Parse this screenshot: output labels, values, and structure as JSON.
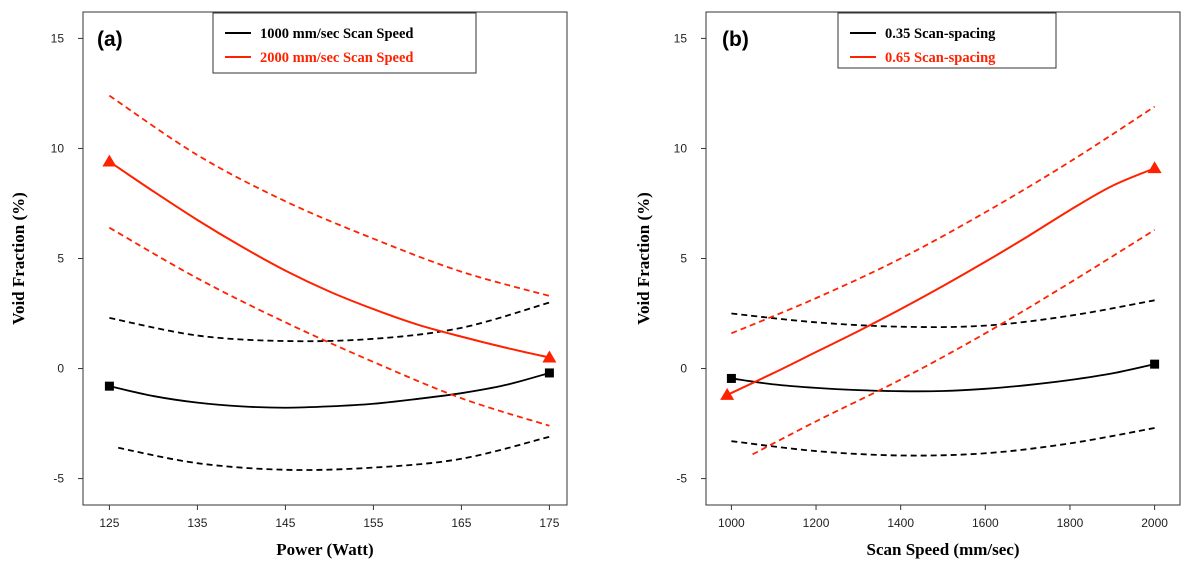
{
  "chart_data": [
    {
      "type": "line",
      "panel_label": "(a)",
      "xlabel": "Power (Watt)",
      "ylabel": "Void Fraction (%)",
      "xlim": [
        122,
        177
      ],
      "ylim": [
        -6.2,
        16.2
      ],
      "xticks": [
        125,
        135,
        145,
        155,
        165,
        175
      ],
      "yticks": [
        -5,
        0,
        5,
        10,
        15
      ],
      "legend_position": "top-center",
      "series": [
        {
          "name": "1000 mm/sec Scan Speed",
          "color": "#000000",
          "marker": "square",
          "x": [
            125,
            130,
            135,
            140,
            145,
            150,
            155,
            160,
            165,
            170,
            175
          ],
          "y": [
            -0.8,
            -1.25,
            -1.55,
            -1.72,
            -1.78,
            -1.72,
            -1.6,
            -1.38,
            -1.12,
            -0.75,
            -0.2
          ],
          "ci_lower": {
            "x": [
              126,
              135,
              145,
              155,
              165,
              175
            ],
            "y": [
              -3.6,
              -4.3,
              -4.6,
              -4.5,
              -4.1,
              -3.1
            ]
          },
          "ci_upper": {
            "x": [
              125,
              135,
              145,
              155,
              165,
              175
            ],
            "y": [
              2.3,
              1.5,
              1.25,
              1.35,
              1.85,
              3.0
            ]
          }
        },
        {
          "name": "2000 mm/sec Scan Speed",
          "color": "#ff2200",
          "marker": "triangle",
          "x": [
            125,
            130,
            135,
            140,
            145,
            150,
            155,
            160,
            165,
            170,
            175
          ],
          "y": [
            9.4,
            8.05,
            6.75,
            5.55,
            4.45,
            3.5,
            2.7,
            2.0,
            1.45,
            0.95,
            0.5
          ],
          "ci_lower": {
            "x": [
              125,
              135,
              145,
              155,
              165,
              175
            ],
            "y": [
              6.4,
              4.1,
              2.1,
              0.3,
              -1.35,
              -2.6
            ]
          },
          "ci_upper": {
            "x": [
              125,
              135,
              145,
              155,
              165,
              175
            ],
            "y": [
              12.4,
              9.7,
              7.6,
              5.9,
              4.4,
              3.3
            ]
          }
        }
      ]
    },
    {
      "type": "line",
      "panel_label": "(b)",
      "xlabel": "Scan Speed (mm/sec)",
      "ylabel": "Void Fraction (%)",
      "xlim": [
        940,
        2060
      ],
      "ylim": [
        -6.2,
        16.2
      ],
      "xticks": [
        1000,
        1200,
        1400,
        1600,
        1800,
        2000
      ],
      "yticks": [
        -5,
        0,
        5,
        10,
        15
      ],
      "legend_position": "top-center",
      "series": [
        {
          "name": "0.35 Scan-spacing",
          "color": "#000000",
          "marker": "square",
          "x": [
            1000,
            1100,
            1200,
            1300,
            1400,
            1500,
            1600,
            1700,
            1800,
            1900,
            2000
          ],
          "y": [
            -0.45,
            -0.72,
            -0.88,
            -0.98,
            -1.03,
            -1.02,
            -0.92,
            -0.75,
            -0.52,
            -0.22,
            0.2
          ],
          "ci_lower": {
            "x": [
              1000,
              1200,
              1400,
              1600,
              1800,
              2000
            ],
            "y": [
              -3.3,
              -3.75,
              -3.95,
              -3.85,
              -3.4,
              -2.7
            ]
          },
          "ci_upper": {
            "x": [
              1000,
              1200,
              1400,
              1600,
              1800,
              2000
            ],
            "y": [
              2.5,
              2.1,
              1.9,
              1.95,
              2.4,
              3.1
            ]
          }
        },
        {
          "name": "0.65 Scan-spacing",
          "color": "#ff2200",
          "marker": "triangle",
          "x": [
            990,
            1100,
            1200,
            1300,
            1400,
            1500,
            1600,
            1700,
            1800,
            1900,
            2000
          ],
          "y": [
            -1.2,
            -0.2,
            0.75,
            1.7,
            2.7,
            3.75,
            4.85,
            6.0,
            7.2,
            8.3,
            9.1
          ],
          "ci_lower": {
            "x": [
              1050,
              1200,
              1400,
              1600,
              1800,
              2000
            ],
            "y": [
              -3.9,
              -2.4,
              -0.5,
              1.6,
              3.9,
              6.3
            ]
          },
          "ci_upper": {
            "x": [
              1000,
              1200,
              1400,
              1600,
              1800,
              2000
            ],
            "y": [
              1.6,
              3.2,
              5.0,
              7.1,
              9.4,
              11.9
            ]
          }
        }
      ]
    }
  ]
}
